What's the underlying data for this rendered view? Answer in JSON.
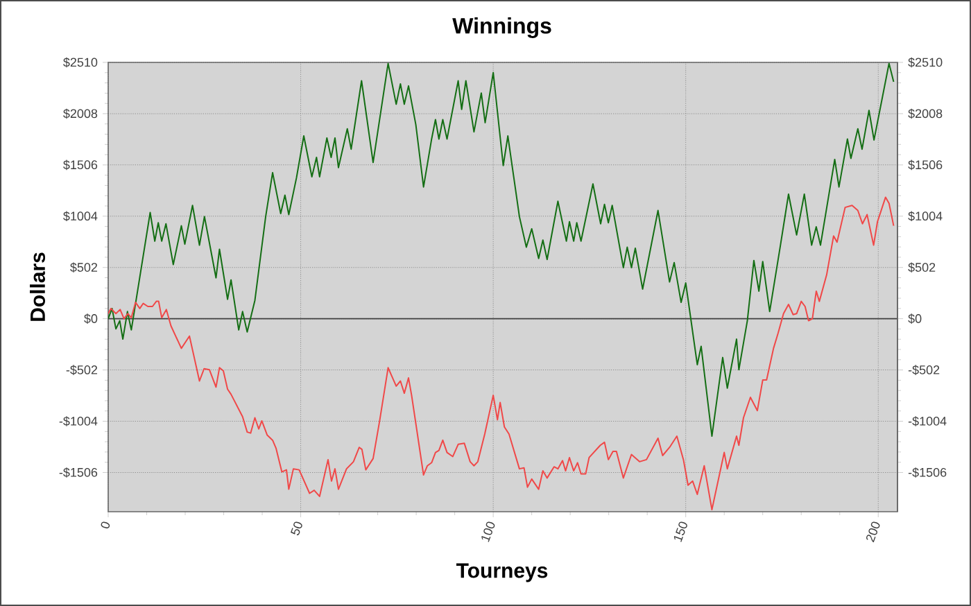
{
  "chart_data": {
    "type": "line",
    "title": "Winnings",
    "xlabel": "Tourneys",
    "ylabel": "Dollars",
    "xlim": [
      0,
      205
    ],
    "xticks": [
      0,
      50,
      100,
      150,
      200
    ],
    "ylim": [
      -1890,
      2510
    ],
    "yticks": [
      {
        "value": -1506,
        "label": "-$1506"
      },
      {
        "value": -1004,
        "label": "-$1004"
      },
      {
        "value": -502,
        "label": "-$502"
      },
      {
        "value": 0,
        "label": "$0"
      },
      {
        "value": 502,
        "label": "$502"
      },
      {
        "value": 1004,
        "label": "$1004"
      },
      {
        "value": 1506,
        "label": "$1506"
      },
      {
        "value": 2008,
        "label": "$2008"
      },
      {
        "value": 2510,
        "label": "$2510"
      }
    ],
    "y2lim": [
      -1890,
      2510
    ],
    "y2ticks": [
      {
        "value": -1506,
        "label": "-$1506"
      },
      {
        "value": -1004,
        "label": "-$1004"
      },
      {
        "value": -502,
        "label": "-$502"
      },
      {
        "value": 0,
        "label": "$0"
      },
      {
        "value": 502,
        "label": "$502"
      },
      {
        "value": 1004,
        "label": "$1004"
      },
      {
        "value": 1506,
        "label": "$1506"
      },
      {
        "value": 2008,
        "label": "$2008"
      },
      {
        "value": 2510,
        "label": "$2510"
      }
    ],
    "grid": true,
    "ref_lines": [
      {
        "axis": "y",
        "value": 0,
        "color": "#404040"
      }
    ],
    "series": [
      {
        "color": "#146e14",
        "x": [
          0,
          1,
          2,
          3,
          3.8,
          5,
          6,
          10.9,
          12.1,
          13,
          13.9,
          15,
          16.9,
          19,
          19.9,
          21.9,
          23.7,
          25,
          28,
          28.9,
          31,
          31.9,
          33.9,
          34.9,
          36.1,
          38.1,
          40.9,
          42.7,
          44.8,
          45.9,
          46.9,
          48.9,
          50.8,
          52.9,
          54.1,
          54.9,
          56.8,
          57.9,
          58.9,
          59.8,
          62.1,
          63.1,
          65.8,
          68.8,
          72.7,
          74.8,
          75.9,
          76.9,
          78,
          79.9,
          81.9,
          84,
          85,
          85.9,
          86.9,
          88,
          90.9,
          91.8,
          92.9,
          95,
          96.9,
          97.9,
          100,
          102.6,
          103.8,
          106.8,
          108.6,
          110,
          111.8,
          112.9,
          114,
          116.8,
          119,
          119.8,
          120.9,
          121.7,
          122.8,
          125.9,
          127.9,
          128.9,
          129.9,
          130.9,
          133.8,
          134.8,
          135.9,
          136.9,
          138.8,
          142.8,
          145.8,
          147,
          148.8,
          150,
          153,
          154,
          156.8,
          159.6,
          160.8,
          163.2,
          163.8,
          166,
          167.7,
          169,
          170,
          171.8,
          174.6,
          176.7,
          178.8,
          180.8,
          182.7,
          183.9,
          185,
          188.7,
          189.8,
          192,
          192.9,
          194.7,
          195.8,
          197.6,
          198.9,
          202.8,
          204
        ],
        "values": [
          0,
          100,
          -100,
          -20,
          -200,
          70,
          -110,
          1040,
          760,
          940,
          760,
          930,
          530,
          910,
          730,
          1110,
          720,
          1000,
          400,
          680,
          190,
          380,
          -110,
          70,
          -130,
          180,
          1000,
          1430,
          1030,
          1210,
          1020,
          1380,
          1790,
          1390,
          1580,
          1390,
          1770,
          1580,
          1770,
          1480,
          1860,
          1660,
          2330,
          1530,
          2500,
          2100,
          2300,
          2100,
          2280,
          1900,
          1290,
          1760,
          1950,
          1760,
          1950,
          1760,
          2330,
          2050,
          2330,
          1830,
          2210,
          1920,
          2410,
          1500,
          1790,
          1000,
          700,
          880,
          590,
          770,
          580,
          1150,
          760,
          950,
          760,
          940,
          760,
          1320,
          930,
          1120,
          940,
          1110,
          500,
          700,
          500,
          690,
          290,
          1060,
          360,
          550,
          160,
          350,
          -450,
          -270,
          -1150,
          -380,
          -680,
          -200,
          -500,
          -20,
          570,
          270,
          560,
          70,
          720,
          1220,
          820,
          1220,
          720,
          900,
          720,
          1560,
          1290,
          1760,
          1570,
          1860,
          1660,
          2040,
          1750,
          2500,
          2320
        ]
      },
      {
        "color": "#f04848",
        "x": [
          0,
          0.7,
          2,
          3.1,
          4.1,
          5.1,
          6,
          7.1,
          8.2,
          9.1,
          10.3,
          11.5,
          12.5,
          13.1,
          13.9,
          15.1,
          16.3,
          19,
          21.1,
          23.7,
          24.9,
          26.3,
          28,
          28.9,
          29.9,
          31,
          31.9,
          34.9,
          36.1,
          37,
          38.1,
          39.1,
          39.9,
          41.3,
          42.7,
          43.6,
          45.1,
          46.3,
          46.9,
          48.1,
          49.6,
          52.3,
          53.5,
          54.9,
          57.1,
          58,
          58.9,
          59.8,
          61.9,
          63.7,
          65.2,
          65.9,
          66.9,
          68.8,
          70.5,
          72.7,
          74.8,
          75.9,
          76.9,
          78,
          78.8,
          81.9,
          82.9,
          84,
          85,
          85.9,
          86.9,
          88,
          89.5,
          90.9,
          92.5,
          94,
          95,
          96,
          97.8,
          100,
          101.1,
          101.8,
          102.9,
          104.1,
          106.8,
          108,
          108.9,
          110,
          111.8,
          112.9,
          114,
          115.8,
          116.8,
          118,
          118.8,
          119.8,
          120.9,
          121.9,
          122.8,
          124,
          124.9,
          127.8,
          128.9,
          129.9,
          131.1,
          132,
          133.8,
          135.9,
          138,
          139.8,
          142.8,
          144,
          145.8,
          147.7,
          149.4,
          150.6,
          151.8,
          153,
          154.8,
          156.8,
          160,
          160.8,
          163.2,
          163.8,
          165,
          166.8,
          168.6,
          170,
          171,
          172.8,
          174,
          175.4,
          176.7,
          177.9,
          178.8,
          180,
          181,
          181.9,
          182.9,
          183.9,
          184.7,
          186.6,
          188.4,
          189.3,
          191.4,
          193.2,
          194.7,
          195.9,
          197.1,
          198.8,
          199.8,
          201.9,
          202.8,
          204
        ],
        "values": [
          50,
          100,
          50,
          90,
          0,
          50,
          10,
          160,
          100,
          150,
          120,
          120,
          170,
          170,
          10,
          90,
          -70,
          -290,
          -170,
          -610,
          -490,
          -500,
          -670,
          -480,
          -510,
          -690,
          -740,
          -960,
          -1110,
          -1120,
          -970,
          -1080,
          -1000,
          -1140,
          -1190,
          -1270,
          -1500,
          -1480,
          -1670,
          -1470,
          -1480,
          -1710,
          -1680,
          -1740,
          -1380,
          -1590,
          -1470,
          -1670,
          -1470,
          -1400,
          -1260,
          -1280,
          -1480,
          -1370,
          -1000,
          -480,
          -660,
          -610,
          -730,
          -580,
          -750,
          -1530,
          -1440,
          -1410,
          -1310,
          -1290,
          -1190,
          -1310,
          -1350,
          -1230,
          -1220,
          -1400,
          -1440,
          -1400,
          -1130,
          -750,
          -990,
          -820,
          -1060,
          -1130,
          -1470,
          -1460,
          -1650,
          -1570,
          -1670,
          -1490,
          -1560,
          -1450,
          -1470,
          -1390,
          -1490,
          -1360,
          -1490,
          -1410,
          -1520,
          -1520,
          -1360,
          -1240,
          -1210,
          -1380,
          -1300,
          -1300,
          -1560,
          -1330,
          -1400,
          -1380,
          -1170,
          -1340,
          -1260,
          -1150,
          -1380,
          -1630,
          -1590,
          -1720,
          -1440,
          -1870,
          -1310,
          -1470,
          -1150,
          -1240,
          -970,
          -770,
          -900,
          -600,
          -600,
          -290,
          -140,
          50,
          140,
          40,
          50,
          170,
          120,
          -20,
          0,
          270,
          170,
          430,
          810,
          750,
          1090,
          1110,
          1060,
          930,
          1020,
          720,
          950,
          1190,
          1130,
          910
        ]
      }
    ]
  }
}
